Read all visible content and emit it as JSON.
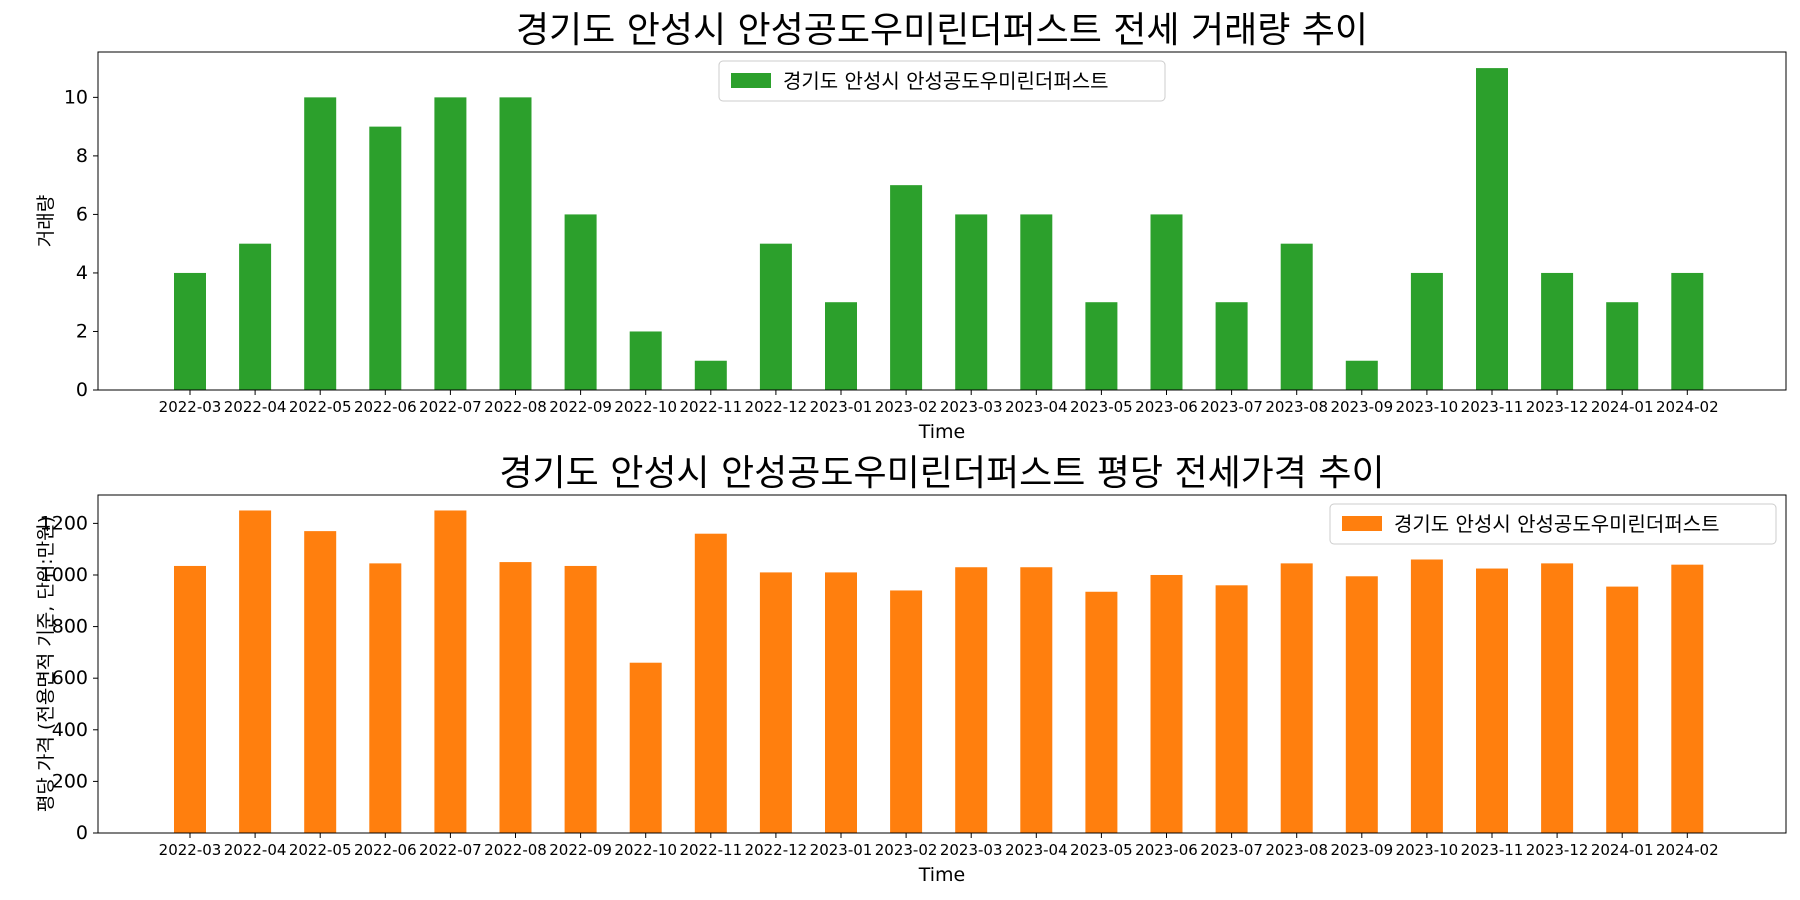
{
  "chart_data": [
    {
      "type": "bar",
      "title": "경기도 안성시 안성공도우미린더퍼스트 전세 거래량 추이",
      "xlabel": "Time",
      "ylabel": "거래량",
      "ylim": [
        0,
        11.55
      ],
      "yticks": [
        0,
        2,
        4,
        6,
        8,
        10
      ],
      "categories": [
        "2022-03",
        "2022-04",
        "2022-05",
        "2022-06",
        "2022-07",
        "2022-08",
        "2022-09",
        "2022-10",
        "2022-11",
        "2022-12",
        "2023-01",
        "2023-02",
        "2023-03",
        "2023-04",
        "2023-05",
        "2023-06",
        "2023-07",
        "2023-08",
        "2023-09",
        "2023-10",
        "2023-11",
        "2023-12",
        "2024-01",
        "2024-02"
      ],
      "series": [
        {
          "name": "경기도 안성시 안성공도우미린더퍼스트",
          "color": "#2ca02c",
          "values": [
            4,
            5,
            10,
            9,
            10,
            10,
            6,
            2,
            1,
            5,
            3,
            7,
            6,
            6,
            3,
            6,
            3,
            5,
            1,
            4,
            11,
            4,
            3,
            4
          ]
        }
      ],
      "legend": "upper-center",
      "grid": false
    },
    {
      "type": "bar",
      "title": "경기도 안성시 안성공도우미린더퍼스트 평당 전세가격 추이",
      "xlabel": "Time",
      "ylabel": "평당 가격 (전용면적 기준, 단위:만원)",
      "ylim": [
        0,
        1310
      ],
      "yticks": [
        0,
        200,
        400,
        600,
        800,
        1000,
        1200
      ],
      "categories": [
        "2022-03",
        "2022-04",
        "2022-05",
        "2022-06",
        "2022-07",
        "2022-08",
        "2022-09",
        "2022-10",
        "2022-11",
        "2022-12",
        "2023-01",
        "2023-02",
        "2023-03",
        "2023-04",
        "2023-05",
        "2023-06",
        "2023-07",
        "2023-08",
        "2023-09",
        "2023-10",
        "2023-11",
        "2023-12",
        "2024-01",
        "2024-02"
      ],
      "series": [
        {
          "name": "경기도 안성시 안성공도우미린더퍼스트",
          "color": "#ff7f0e",
          "values": [
            1035,
            1250,
            1170,
            1045,
            1250,
            1050,
            1035,
            660,
            1160,
            1010,
            1010,
            940,
            1030,
            1030,
            935,
            1000,
            960,
            1045,
            995,
            1060,
            1025,
            1045,
            955,
            1040
          ]
        }
      ],
      "legend": "upper-right",
      "grid": false
    }
  ]
}
